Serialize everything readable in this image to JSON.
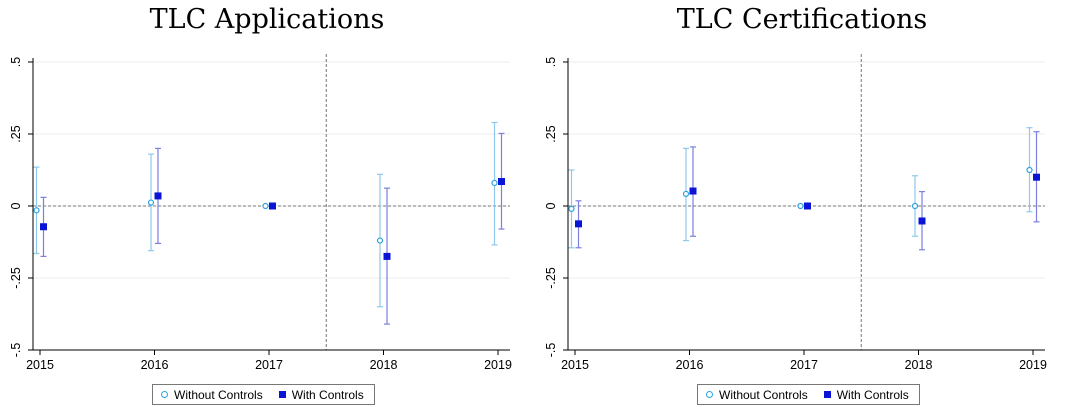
{
  "colors": {
    "without_controls": "#2aa2e0",
    "without_controls_ci": "#8fc8ec",
    "with_controls": "#0a14d6",
    "with_controls_ci": "#7a7fe0",
    "grid": "#ececec",
    "reference_line": "#777777"
  },
  "legend": {
    "without_controls_label": "Without Controls",
    "with_controls_label": "With Controls"
  },
  "chart_data": [
    {
      "type": "scatter",
      "title": "TLC Applications",
      "xlabel": "",
      "ylabel": "",
      "x": [
        2015,
        2016,
        2017,
        2018,
        2019
      ],
      "x_tick_labels": [
        "2015",
        "2016",
        "2017",
        "2018",
        "2019"
      ],
      "ylim": [
        -0.5,
        0.5
      ],
      "y_ticks": [
        -0.5,
        -0.25,
        0,
        0.25,
        0.5
      ],
      "y_tick_labels": [
        "-.5",
        "-.25",
        "0",
        ".25",
        ".5"
      ],
      "grid": true,
      "reference_y": 0,
      "reference_x": 2017.5,
      "legend_position": "bottom",
      "series": [
        {
          "name": "Without Controls",
          "marker": "hollow-circle",
          "values": [
            -0.015,
            0.012,
            0.0,
            -0.12,
            0.08
          ],
          "ci_low": [
            -0.165,
            -0.155,
            0.0,
            -0.35,
            -0.135
          ],
          "ci_high": [
            0.135,
            0.18,
            0.0,
            0.11,
            0.29
          ]
        },
        {
          "name": "With Controls",
          "marker": "filled-square",
          "values": [
            -0.072,
            0.035,
            0.0,
            -0.175,
            0.085
          ],
          "ci_low": [
            -0.175,
            -0.13,
            0.0,
            -0.41,
            -0.08
          ],
          "ci_high": [
            0.03,
            0.2,
            0.0,
            0.062,
            0.252
          ]
        }
      ]
    },
    {
      "type": "scatter",
      "title": "TLC Certifications",
      "xlabel": "",
      "ylabel": "",
      "x": [
        2015,
        2016,
        2017,
        2018,
        2019
      ],
      "x_tick_labels": [
        "2015",
        "2016",
        "2017",
        "2018",
        "2019"
      ],
      "ylim": [
        -0.5,
        0.5
      ],
      "y_ticks": [
        -0.5,
        -0.25,
        0,
        0.25,
        0.5
      ],
      "y_tick_labels": [
        "-.5",
        "-.25",
        "0",
        ".25",
        ".5"
      ],
      "grid": true,
      "reference_y": 0,
      "reference_x": 2017.5,
      "legend_position": "bottom",
      "series": [
        {
          "name": "Without Controls",
          "marker": "hollow-circle",
          "values": [
            -0.01,
            0.042,
            0.0,
            0.0,
            0.125
          ],
          "ci_low": [
            -0.145,
            -0.12,
            0.0,
            -0.105,
            -0.02
          ],
          "ci_high": [
            0.125,
            0.2,
            0.0,
            0.105,
            0.272
          ]
        },
        {
          "name": "With Controls",
          "marker": "filled-square",
          "values": [
            -0.062,
            0.052,
            0.0,
            -0.052,
            0.1
          ],
          "ci_low": [
            -0.145,
            -0.105,
            0.0,
            -0.152,
            -0.055
          ],
          "ci_high": [
            0.018,
            0.205,
            0.0,
            0.05,
            0.258
          ]
        }
      ]
    }
  ]
}
